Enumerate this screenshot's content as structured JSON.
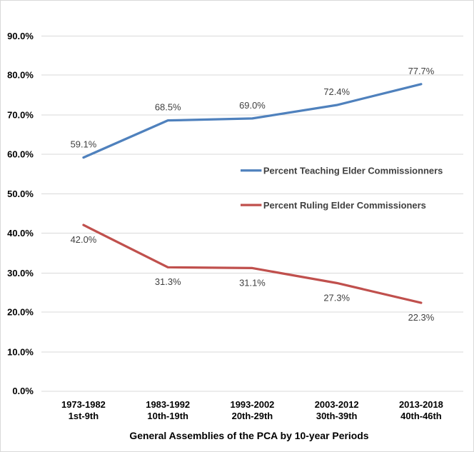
{
  "chart_data": {
    "type": "line",
    "title": "",
    "xlabel": "General Assemblies of the PCA by 10-year Periods",
    "ylabel": "",
    "categories": [
      {
        "period": "1973-1982",
        "assemblies": "1st-9th"
      },
      {
        "period": "1983-1992",
        "assemblies": "10th-19th"
      },
      {
        "period": "1993-2002",
        "assemblies": "20th-29th"
      },
      {
        "period": "2003-2012",
        "assemblies": "30th-39th"
      },
      {
        "period": "2013-2018",
        "assemblies": "40th-46th"
      }
    ],
    "series": [
      {
        "name": "Percent Teaching Elder Commissionners",
        "color": "#4F81BD",
        "values": [
          59.1,
          68.5,
          69.0,
          72.4,
          77.7
        ],
        "data_labels": [
          "59.1%",
          "68.5%",
          "69.0%",
          "72.4%",
          "77.7%"
        ],
        "label_placement": "above"
      },
      {
        "name": "Percent Ruling Elder Commissioners",
        "color": "#C0504D",
        "values": [
          42.0,
          31.3,
          31.1,
          27.3,
          22.3
        ],
        "data_labels": [
          "42.0%",
          "31.3%",
          "31.1%",
          "27.3%",
          "22.3%"
        ],
        "label_placement": "below"
      }
    ],
    "y_axis": {
      "min": 0,
      "max": 90,
      "step": 10,
      "tick_labels": [
        "0.0%",
        "10.0%",
        "20.0%",
        "30.0%",
        "40.0%",
        "50.0%",
        "60.0%",
        "70.0%",
        "80.0%",
        "90.0%"
      ]
    },
    "grid": true,
    "legend": {
      "position": "inside-right-middle",
      "entries": [
        "Percent Teaching Elder Commissionners",
        "Percent Ruling Elder Commissioners"
      ]
    }
  },
  "colors": {
    "background": "#FFFFFF",
    "frame_border": "#D9D9D9",
    "gridline": "#D9D9D9",
    "axis_text": "#000000",
    "data_label_text": "#404040",
    "legend_text": "#404040"
  }
}
